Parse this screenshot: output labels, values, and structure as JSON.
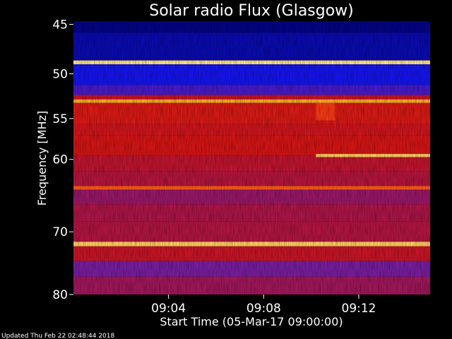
{
  "chart_data": {
    "type": "heatmap",
    "title": "Solar radio Flux (Glasgow)",
    "xlabel": "Start Time (05-Mar-17 09:00:00)",
    "ylabel": "Frequency [MHz]",
    "x_start": "09:00:00",
    "x_end": "09:15:00",
    "x_ticks": [
      "09:04",
      "09:08",
      "09:12"
    ],
    "x_tick_minutes": [
      4,
      8,
      12
    ],
    "y_ticks": [
      45,
      50,
      55,
      60,
      70,
      80
    ],
    "ylim": [
      44.7,
      80
    ],
    "y_scale": "log",
    "y_inverted": true,
    "colormap": "blue-purple-red-yellow",
    "rows": [
      {
        "f": [
          44.7,
          45.8
        ],
        "level": 0.02
      },
      {
        "f": [
          45.8,
          48.6
        ],
        "level": 0.06
      },
      {
        "f": [
          48.6,
          49.0
        ],
        "level": 0.98
      },
      {
        "f": [
          49.0,
          51.2
        ],
        "level": 0.12
      },
      {
        "f": [
          51.2,
          52.3
        ],
        "level": 0.22
      },
      {
        "f": [
          52.3,
          52.8
        ],
        "level": 0.55
      },
      {
        "f": [
          52.8,
          53.2
        ],
        "level": 0.9
      },
      {
        "f": [
          53.2,
          55.6
        ],
        "level": 0.62
      },
      {
        "f": [
          55.6,
          57.0
        ],
        "level": 0.58
      },
      {
        "f": [
          57.0,
          59.5
        ],
        "level": 0.6
      },
      {
        "f": [
          59.5,
          61.5
        ],
        "level": 0.52
      },
      {
        "f": [
          61.5,
          63.5
        ],
        "level": 0.48
      },
      {
        "f": [
          63.5,
          64.0
        ],
        "level": 0.82
      },
      {
        "f": [
          64.0,
          66.0
        ],
        "level": 0.4
      },
      {
        "f": [
          66.0,
          68.5
        ],
        "level": 0.45
      },
      {
        "f": [
          68.5,
          71.5
        ],
        "level": 0.47
      },
      {
        "f": [
          71.5,
          72.2
        ],
        "level": 0.95
      },
      {
        "f": [
          72.2,
          74.5
        ],
        "level": 0.55
      },
      {
        "f": [
          74.5,
          77.0
        ],
        "level": 0.32
      },
      {
        "f": [
          77.0,
          80.0
        ],
        "level": 0.42
      }
    ],
    "events": [
      {
        "t": 10.2,
        "f_from": 53.2,
        "f_to": 55.2,
        "level": 0.75,
        "until": 11.0
      },
      {
        "t": 10.2,
        "f_from": 59.3,
        "f_to": 59.7,
        "level": 0.95,
        "until": 15.0
      }
    ],
    "legend": "none",
    "grid": false
  },
  "footer": {
    "updated": "Updated Thu Feb 22 02:48:44 2018"
  }
}
